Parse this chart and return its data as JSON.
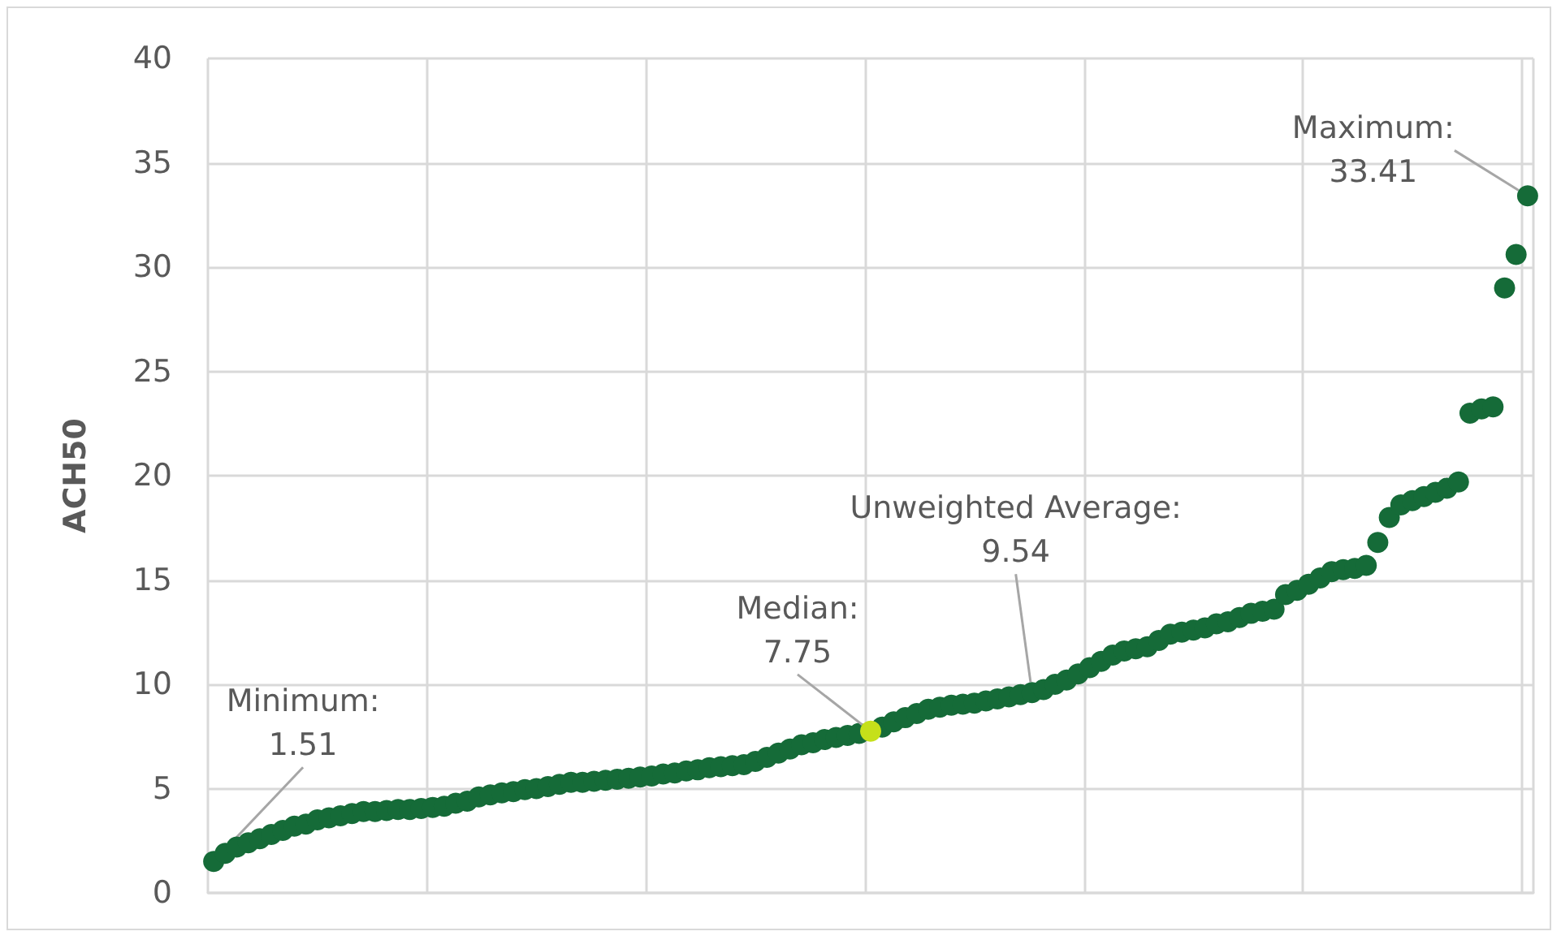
{
  "chart_data": {
    "type": "scatter",
    "ylabel": "ACH50",
    "categories": [
      null,
      null,
      null,
      null,
      null,
      null,
      null,
      null,
      null,
      null,
      null,
      null,
      null,
      null,
      null,
      null,
      null,
      null,
      null,
      null,
      null,
      null,
      null,
      null,
      null,
      null,
      null,
      null,
      null,
      null,
      null,
      null,
      null,
      null,
      null,
      null,
      null,
      null,
      null,
      null,
      null,
      null,
      null,
      null,
      null,
      null,
      null,
      null,
      null,
      null,
      null,
      null,
      null,
      null,
      null,
      null,
      null,
      null,
      null,
      null,
      null,
      null,
      null,
      null,
      null,
      null,
      null,
      null,
      null,
      null,
      null,
      null,
      null,
      null,
      null,
      null,
      null,
      null,
      null,
      null,
      null,
      null,
      null,
      null,
      null,
      null,
      null,
      null,
      null,
      null,
      null,
      null,
      null,
      null,
      null,
      null,
      null,
      null,
      null,
      null,
      null,
      null,
      null,
      null,
      null,
      null,
      null,
      null,
      null,
      null,
      null,
      null,
      null,
      null,
      null
    ],
    "series": [
      {
        "color": "#156b38",
        "values": [
          1.51,
          1.9,
          2.2,
          2.4,
          2.6,
          2.8,
          3.0,
          3.2,
          3.3,
          3.5,
          3.6,
          3.7,
          3.8,
          3.9,
          3.9,
          3.95,
          4.0,
          4.0,
          4.05,
          4.1,
          4.15,
          4.3,
          4.4,
          4.6,
          4.7,
          4.8,
          4.85,
          4.95,
          5.0,
          5.1,
          5.2,
          5.3,
          5.3,
          5.35,
          5.4,
          5.45,
          5.5,
          5.55,
          5.6,
          5.7,
          5.75,
          5.85,
          5.9,
          6.0,
          6.05,
          6.1,
          6.15,
          6.3,
          6.5,
          6.7,
          6.9,
          7.1,
          7.2,
          7.35,
          7.45,
          7.55,
          7.65,
          null,
          7.95,
          8.2,
          8.4,
          8.6,
          8.8,
          8.9,
          9.0,
          9.05,
          9.1,
          9.2,
          9.3,
          9.4,
          9.5,
          9.6,
          9.75,
          10.0,
          10.2,
          10.5,
          10.8,
          11.1,
          11.4,
          11.6,
          11.7,
          11.8,
          12.1,
          12.4,
          12.5,
          12.6,
          12.7,
          12.9,
          13.0,
          13.2,
          13.4,
          13.5,
          13.6,
          14.3,
          14.5,
          14.8,
          15.1,
          15.4,
          15.5,
          15.55,
          15.7,
          16.8,
          18.0,
          18.6,
          18.8,
          19.0,
          19.2,
          19.4,
          19.7,
          23.0,
          23.2,
          23.3,
          29.0,
          30.6,
          33.41
        ]
      },
      {
        "color": "#c5e01a",
        "values": [
          null,
          null,
          null,
          null,
          null,
          null,
          null,
          null,
          null,
          null,
          null,
          null,
          null,
          null,
          null,
          null,
          null,
          null,
          null,
          null,
          null,
          null,
          null,
          null,
          null,
          null,
          null,
          null,
          null,
          null,
          null,
          null,
          null,
          null,
          null,
          null,
          null,
          null,
          null,
          null,
          null,
          null,
          null,
          null,
          null,
          null,
          null,
          null,
          null,
          null,
          null,
          null,
          null,
          null,
          null,
          null,
          null,
          7.75,
          null,
          null,
          null,
          null,
          null,
          null,
          null,
          null,
          null,
          null,
          null,
          null,
          null,
          null,
          null,
          null,
          null,
          null,
          null,
          null,
          null,
          null,
          null,
          null,
          null,
          null,
          null,
          null,
          null,
          null,
          null,
          null,
          null,
          null,
          null,
          null,
          null,
          null,
          null,
          null,
          null,
          null,
          null,
          null,
          null,
          null,
          null,
          null,
          null,
          null,
          null,
          null,
          null,
          null,
          null,
          null,
          null
        ]
      }
    ],
    "ylim": [
      0,
      40
    ],
    "yticks": [
      0,
      5,
      10,
      15,
      20,
      25,
      30,
      35,
      40
    ],
    "grid": true,
    "marker": "circle",
    "annotations": [
      "Minimum:\n1.51",
      {
        "text": "Median:\n7.75",
        "y": 7.75
      },
      "Unweighted Average:\n9.54",
      "Maximum:\n33.41"
    ]
  }
}
